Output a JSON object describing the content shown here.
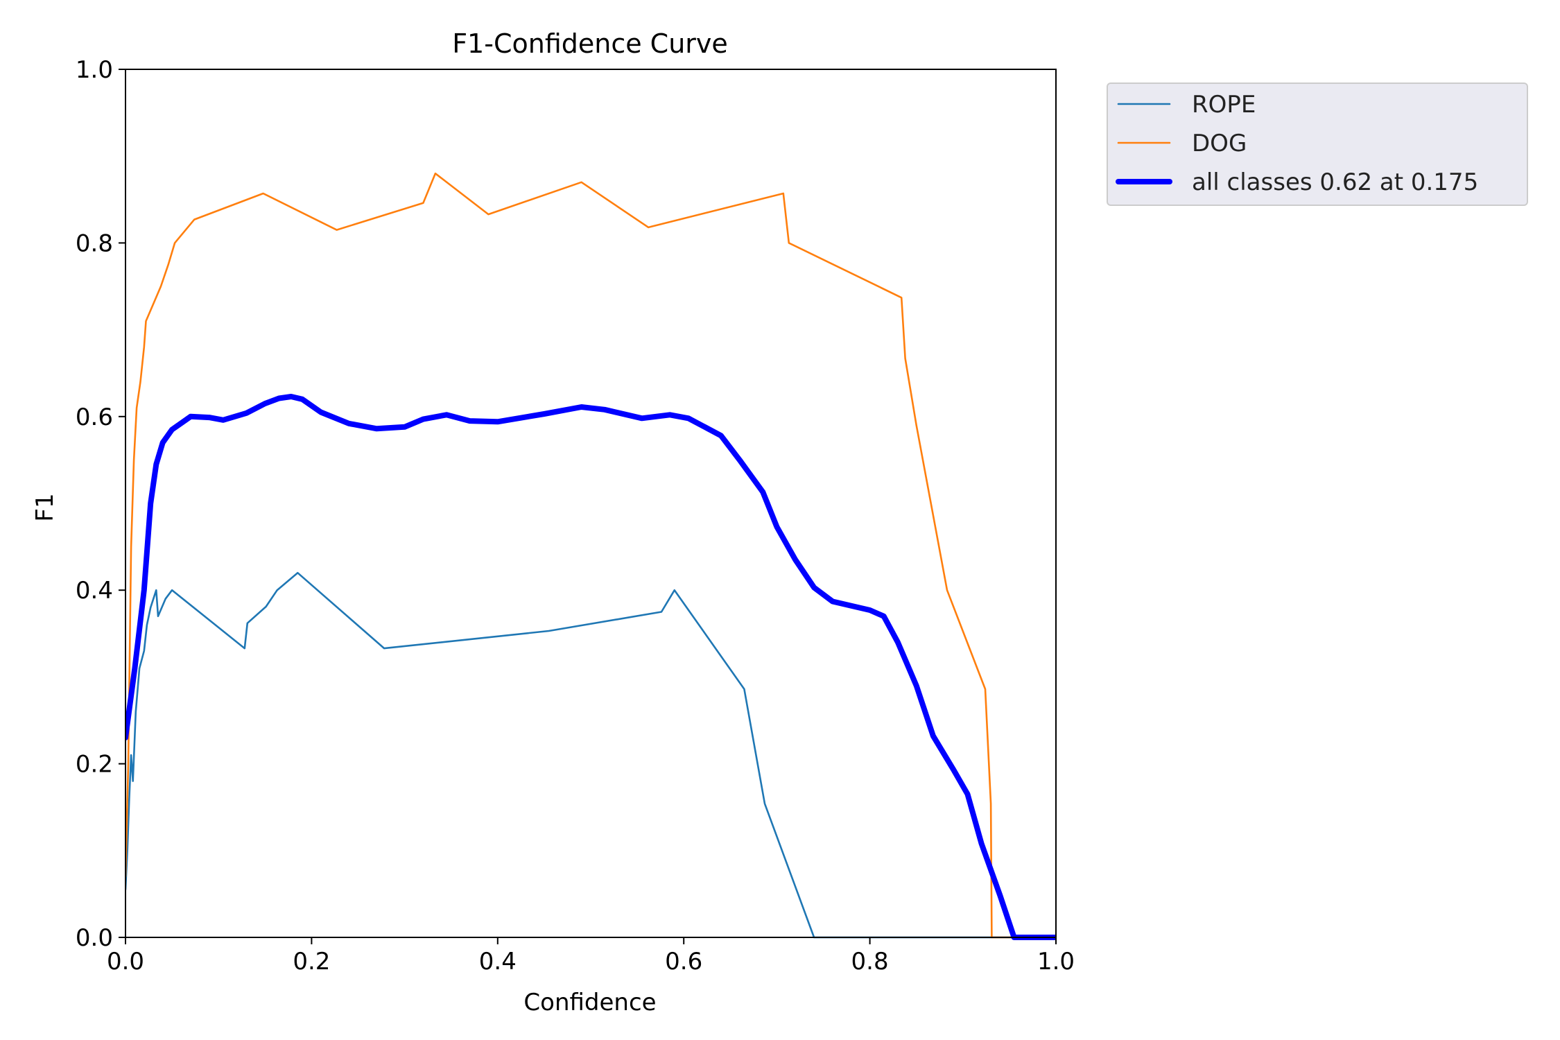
{
  "chart_data": {
    "type": "line",
    "title": "F1-Confidence Curve",
    "xlabel": "Confidence",
    "ylabel": "F1",
    "xlim": [
      0.0,
      1.0
    ],
    "ylim": [
      0.0,
      1.0
    ],
    "xticks": [
      "0.0",
      "0.2",
      "0.4",
      "0.6",
      "0.8",
      "1.0"
    ],
    "yticks": [
      "0.0",
      "0.2",
      "0.4",
      "0.6",
      "0.8",
      "1.0"
    ],
    "grid": false,
    "legend_position": "outside-top-right",
    "series": [
      {
        "name": "ROPE",
        "color": "#1f77b4",
        "linewidth": "thin",
        "points": [
          [
            0.0,
            0.055
          ],
          [
            0.002,
            0.1
          ],
          [
            0.004,
            0.16
          ],
          [
            0.006,
            0.21
          ],
          [
            0.008,
            0.18
          ],
          [
            0.011,
            0.26
          ],
          [
            0.015,
            0.31
          ],
          [
            0.02,
            0.33
          ],
          [
            0.023,
            0.36
          ],
          [
            0.027,
            0.38
          ],
          [
            0.033,
            0.4
          ],
          [
            0.035,
            0.37
          ],
          [
            0.043,
            0.39
          ],
          [
            0.05,
            0.4
          ],
          [
            0.128,
            0.333
          ],
          [
            0.131,
            0.362
          ],
          [
            0.151,
            0.381
          ],
          [
            0.163,
            0.4
          ],
          [
            0.185,
            0.42
          ],
          [
            0.278,
            0.333
          ],
          [
            0.455,
            0.353
          ],
          [
            0.576,
            0.375
          ],
          [
            0.59,
            0.4
          ],
          [
            0.665,
            0.286
          ],
          [
            0.687,
            0.154
          ],
          [
            0.74,
            0.0
          ],
          [
            1.0,
            0.0
          ]
        ]
      },
      {
        "name": "DOG",
        "color": "#ff7f0e",
        "linewidth": "thin",
        "points": [
          [
            0.0,
            0.07
          ],
          [
            0.003,
            0.2
          ],
          [
            0.006,
            0.45
          ],
          [
            0.009,
            0.55
          ],
          [
            0.012,
            0.61
          ],
          [
            0.016,
            0.64
          ],
          [
            0.02,
            0.68
          ],
          [
            0.022,
            0.71
          ],
          [
            0.03,
            0.73
          ],
          [
            0.038,
            0.75
          ],
          [
            0.046,
            0.775
          ],
          [
            0.053,
            0.8
          ],
          [
            0.074,
            0.827
          ],
          [
            0.148,
            0.857
          ],
          [
            0.227,
            0.815
          ],
          [
            0.32,
            0.846
          ],
          [
            0.333,
            0.88
          ],
          [
            0.39,
            0.833
          ],
          [
            0.49,
            0.87
          ],
          [
            0.562,
            0.818
          ],
          [
            0.707,
            0.857
          ],
          [
            0.713,
            0.8
          ],
          [
            0.834,
            0.737
          ],
          [
            0.838,
            0.667
          ],
          [
            0.85,
            0.59
          ],
          [
            0.883,
            0.4
          ],
          [
            0.924,
            0.286
          ],
          [
            0.93,
            0.154
          ],
          [
            0.931,
            0.0
          ],
          [
            1.0,
            0.0
          ]
        ]
      },
      {
        "name": "all classes 0.62 at 0.175",
        "color": "#0000ff",
        "linewidth": "thick",
        "points": [
          [
            0.0,
            0.23
          ],
          [
            0.01,
            0.31
          ],
          [
            0.02,
            0.4
          ],
          [
            0.027,
            0.5
          ],
          [
            0.033,
            0.545
          ],
          [
            0.04,
            0.57
          ],
          [
            0.05,
            0.585
          ],
          [
            0.07,
            0.6
          ],
          [
            0.09,
            0.599
          ],
          [
            0.105,
            0.596
          ],
          [
            0.13,
            0.604
          ],
          [
            0.15,
            0.615
          ],
          [
            0.165,
            0.621
          ],
          [
            0.178,
            0.623
          ],
          [
            0.19,
            0.62
          ],
          [
            0.21,
            0.605
          ],
          [
            0.24,
            0.592
          ],
          [
            0.27,
            0.586
          ],
          [
            0.3,
            0.588
          ],
          [
            0.32,
            0.597
          ],
          [
            0.345,
            0.602
          ],
          [
            0.37,
            0.595
          ],
          [
            0.4,
            0.594
          ],
          [
            0.45,
            0.603
          ],
          [
            0.49,
            0.611
          ],
          [
            0.515,
            0.608
          ],
          [
            0.555,
            0.598
          ],
          [
            0.585,
            0.602
          ],
          [
            0.605,
            0.598
          ],
          [
            0.64,
            0.578
          ],
          [
            0.66,
            0.55
          ],
          [
            0.685,
            0.513
          ],
          [
            0.7,
            0.473
          ],
          [
            0.72,
            0.435
          ],
          [
            0.74,
            0.403
          ],
          [
            0.76,
            0.387
          ],
          [
            0.8,
            0.377
          ],
          [
            0.815,
            0.37
          ],
          [
            0.83,
            0.34
          ],
          [
            0.85,
            0.29
          ],
          [
            0.868,
            0.232
          ],
          [
            0.89,
            0.193
          ],
          [
            0.905,
            0.165
          ],
          [
            0.92,
            0.108
          ],
          [
            0.94,
            0.048
          ],
          [
            0.955,
            0.0
          ],
          [
            1.0,
            0.0
          ]
        ]
      }
    ]
  }
}
